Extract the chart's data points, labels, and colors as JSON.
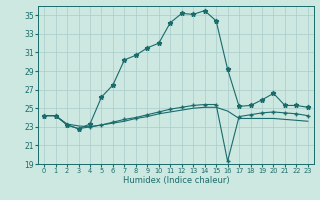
{
  "xlabel": "Humidex (Indice chaleur)",
  "bg_color": "#cce8e0",
  "grid_color": "#aacccc",
  "line_color": "#1a6b6b",
  "xmin": -0.5,
  "xmax": 23.5,
  "ymin": 19,
  "ymax": 36,
  "yticks": [
    19,
    21,
    23,
    25,
    27,
    29,
    31,
    33,
    35
  ],
  "xticks": [
    0,
    1,
    2,
    3,
    4,
    5,
    6,
    7,
    8,
    9,
    10,
    11,
    12,
    13,
    14,
    15,
    16,
    17,
    18,
    19,
    20,
    21,
    22,
    23
  ],
  "series1_x": [
    0,
    1,
    2,
    3,
    4,
    5,
    6,
    7,
    8,
    9,
    10,
    11,
    12,
    13,
    14,
    15,
    16,
    17,
    18,
    19,
    20,
    21,
    22,
    23
  ],
  "series1_y": [
    24.2,
    24.2,
    23.2,
    22.8,
    23.3,
    26.2,
    27.5,
    30.2,
    30.7,
    31.5,
    32.0,
    34.2,
    35.2,
    35.1,
    35.5,
    34.4,
    29.2,
    25.2,
    25.3,
    25.9,
    26.6,
    25.3,
    25.3,
    25.1
  ],
  "series2_x": [
    0,
    1,
    2,
    3,
    4,
    5,
    6,
    7,
    8,
    9,
    10,
    11,
    12,
    13,
    14,
    15,
    16,
    17,
    18,
    19,
    20,
    21,
    22,
    23
  ],
  "series2_y": [
    24.2,
    24.2,
    23.2,
    22.8,
    23.0,
    23.2,
    23.5,
    23.8,
    24.0,
    24.3,
    24.6,
    24.9,
    25.1,
    25.3,
    25.4,
    25.4,
    19.3,
    24.1,
    24.3,
    24.5,
    24.6,
    24.5,
    24.4,
    24.2
  ],
  "series3_x": [
    0,
    1,
    2,
    3,
    4,
    5,
    6,
    7,
    8,
    9,
    10,
    11,
    12,
    13,
    14,
    15,
    16,
    17,
    18,
    19,
    20,
    21,
    22,
    23
  ],
  "series3_y": [
    24.2,
    24.2,
    23.3,
    23.1,
    23.0,
    23.2,
    23.4,
    23.6,
    23.9,
    24.1,
    24.4,
    24.6,
    24.8,
    25.0,
    25.1,
    25.1,
    24.7,
    23.9,
    23.9,
    23.9,
    23.9,
    23.8,
    23.7,
    23.6
  ]
}
